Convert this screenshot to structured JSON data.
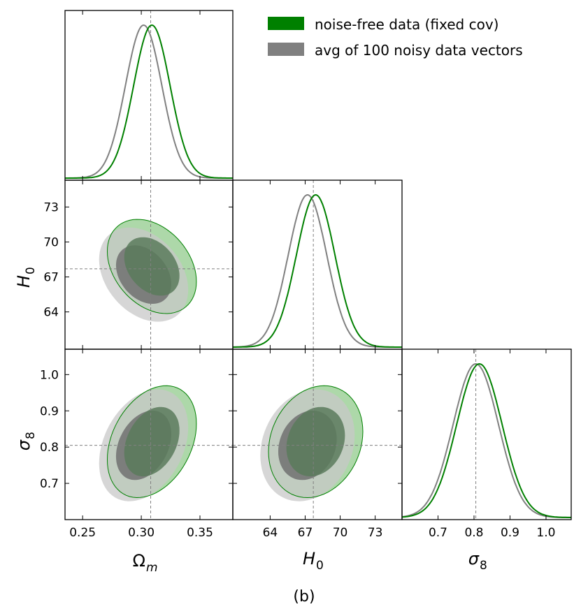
{
  "caption": "(b)",
  "legend": {
    "placement": "top-right",
    "entries": [
      {
        "label": "noise-free data (fixed cov)",
        "color": "#008000"
      },
      {
        "label": "avg of 100 noisy data vectors",
        "color": "#808080"
      }
    ]
  },
  "colors": {
    "green": "#008000",
    "green_outer_fill": "#9fd19a",
    "green_inner_fill": "#5a7a5c",
    "gray": "#808080",
    "gray_outer_fill": "#c8c8c8",
    "gray_inner_fill": "#707070",
    "truth_line": "#808080"
  },
  "params": {
    "om": {
      "label": "Ω",
      "sub": "m",
      "range": [
        0.235,
        0.378
      ],
      "ticks": [
        0.25,
        0.3,
        0.35
      ],
      "tick_labels": [
        "0.25",
        "0.30",
        "0.35"
      ],
      "truth": 0.308
    },
    "h0": {
      "label": "H",
      "sub": "0",
      "range": [
        60.8,
        75.3
      ],
      "ticks": [
        64,
        67,
        70,
        73
      ],
      "tick_labels": [
        "64",
        "67",
        "70",
        "73"
      ],
      "truth": 67.7
    },
    "s8": {
      "label": "σ",
      "sub": "8",
      "range": [
        0.6,
        1.07
      ],
      "ticks": [
        0.7,
        0.8,
        0.9,
        1.0
      ],
      "tick_labels": [
        "0.7",
        "0.8",
        "0.9",
        "1.0"
      ],
      "truth": 0.805
    }
  },
  "chart_data": {
    "type": "triangle-corner",
    "series": [
      {
        "name": "noise-free data (fixed cov)",
        "color_key": "green",
        "means": {
          "om": 0.309,
          "h0": 67.9,
          "s8": 0.815
        },
        "sigmas": {
          "om": 0.0155,
          "h0": 1.65,
          "s8": 0.063
        },
        "corr": {
          "om_h0": -0.32,
          "om_s8": 0.32,
          "h0_s8": 0.18
        }
      },
      {
        "name": "avg of 100 noisy data vectors",
        "color_key": "gray",
        "means": {
          "om": 0.302,
          "h0": 67.2,
          "s8": 0.805
        },
        "sigmas": {
          "om": 0.0155,
          "h0": 1.65,
          "s8": 0.063
        },
        "corr": {
          "om_h0": -0.32,
          "om_s8": 0.32,
          "h0_s8": 0.18
        }
      }
    ],
    "panels": {
      "diag_om": {
        "x": "om"
      },
      "om_h0": {
        "x": "om",
        "y": "h0"
      },
      "diag_h0": {
        "x": "h0"
      },
      "om_s8": {
        "x": "om",
        "y": "s8"
      },
      "h0_s8": {
        "x": "h0",
        "y": "s8"
      },
      "diag_s8": {
        "x": "s8"
      }
    }
  }
}
